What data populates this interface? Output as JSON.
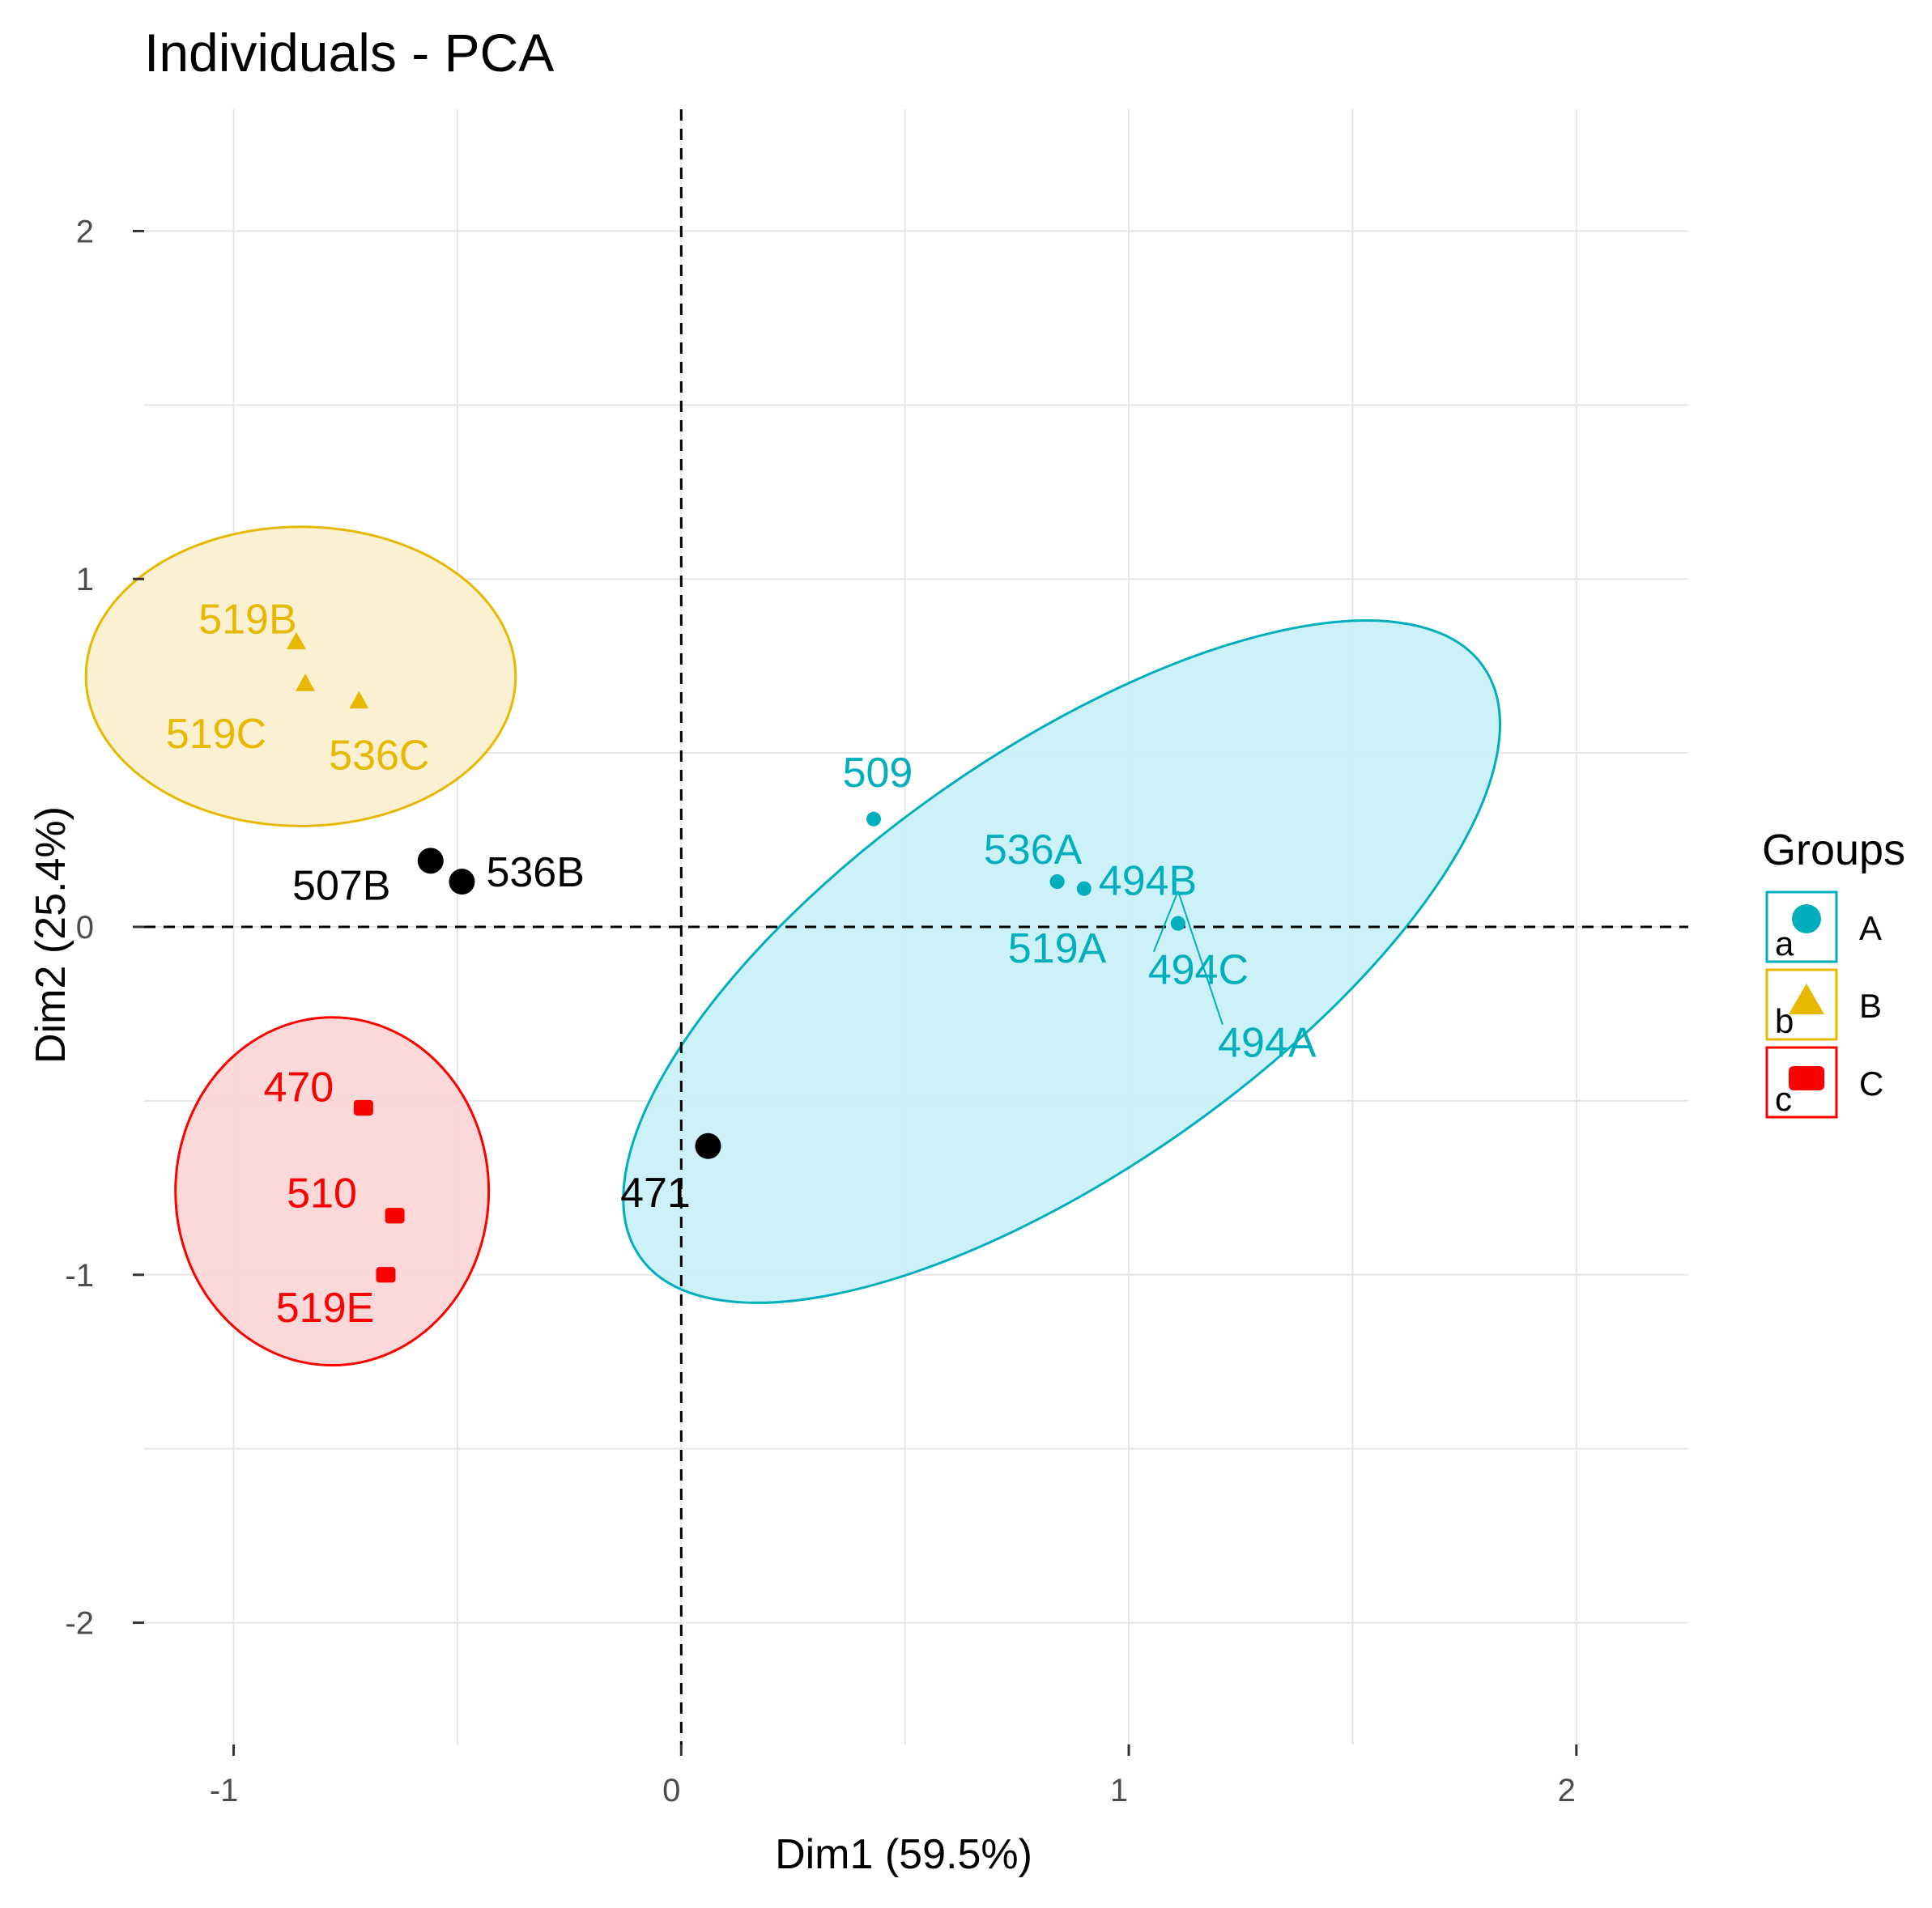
{
  "chart_data": {
    "type": "scatter",
    "title": "Individuals  - PCA",
    "xlabel": "Dim1  (59.5%)",
    "ylabel": "Dim2  (25.4%)",
    "xlim": [
      -1.2,
      2.25
    ],
    "ylim": [
      -2.35,
      2.35
    ],
    "x_ticks": [
      -1,
      0,
      1,
      2
    ],
    "y_ticks": [
      -2,
      -1,
      0,
      1,
      2
    ],
    "x_tick_labels": [
      "-1",
      "0",
      "1",
      "2"
    ],
    "y_tick_labels": [
      "-2",
      "-1",
      "0",
      "1",
      "2"
    ],
    "grid": true,
    "legend": {
      "title": "Groups",
      "placement": "right",
      "entries": [
        {
          "label": "A",
          "key": "a"
        },
        {
          "label": "B",
          "key": "b"
        },
        {
          "label": "C",
          "key": "c"
        }
      ]
    },
    "groups": [
      {
        "name": "A",
        "color": "#00AFBB",
        "fill": "#c9f0f9",
        "shape": "circle",
        "ellipse": {
          "cx": 0.85,
          "cy": -0.1,
          "rx": 1.15,
          "ry": 0.6,
          "rotation_deg": -35
        },
        "points": [
          {
            "label": "509",
            "x": 0.43,
            "y": 0.31
          },
          {
            "label": "536A",
            "x": 0.84,
            "y": 0.13
          },
          {
            "label": "494B",
            "x": 0.9,
            "y": 0.11
          },
          {
            "label": "519A",
            "x": 0.84,
            "y": 0.13
          },
          {
            "label": "494C",
            "x": 1.11,
            "y": 0.01
          },
          {
            "label": "494A",
            "x": 1.11,
            "y": 0.01
          }
        ]
      },
      {
        "name": "B",
        "color": "#E7B800",
        "fill": "#fbf0d0",
        "shape": "triangle",
        "ellipse": {
          "cx": -0.85,
          "cy": 0.72,
          "rx": 0.48,
          "ry": 0.43,
          "rotation_deg": 0
        },
        "points": [
          {
            "label": "519B",
            "x": -0.86,
            "y": 0.82
          },
          {
            "label": "519C",
            "x": -0.84,
            "y": 0.7
          },
          {
            "label": "536C",
            "x": -0.72,
            "y": 0.65
          }
        ]
      },
      {
        "name": "C",
        "color": "#FC0000",
        "fill": "#fdd6d6",
        "shape": "square",
        "ellipse": {
          "cx": -0.78,
          "cy": -0.76,
          "rx": 0.35,
          "ry": 0.5,
          "rotation_deg": 0
        },
        "points": [
          {
            "label": "470",
            "x": -0.71,
            "y": -0.52
          },
          {
            "label": "510",
            "x": -0.64,
            "y": -0.83
          },
          {
            "label": "519E",
            "x": -0.66,
            "y": -1.0
          }
        ]
      }
    ],
    "unassigned": {
      "color": "#000000",
      "points": [
        {
          "label": "507B",
          "x": -0.56,
          "y": 0.19
        },
        {
          "label": "536B",
          "x": -0.49,
          "y": 0.13
        },
        {
          "label": "471",
          "x": 0.06,
          "y": -0.63
        }
      ]
    }
  }
}
